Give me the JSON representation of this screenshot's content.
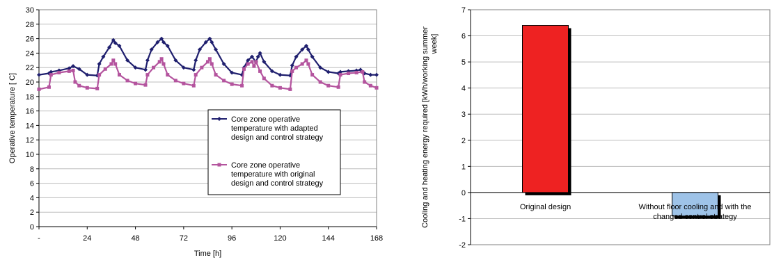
{
  "chart_data": [
    {
      "type": "line",
      "title": "",
      "xlabel": "Time [h]",
      "ylabel": "Operative temperature [ C]",
      "xlim": [
        0,
        168
      ],
      "ylim": [
        0,
        30
      ],
      "x_ticks": [
        0,
        24,
        48,
        72,
        96,
        120,
        144,
        168
      ],
      "x_tick_labels": [
        "-",
        "24",
        "48",
        "72",
        "96",
        "120",
        "144",
        "168"
      ],
      "y_ticks": [
        0,
        2,
        4,
        6,
        8,
        10,
        12,
        14,
        16,
        18,
        20,
        22,
        24,
        26,
        28,
        30
      ],
      "y_tick_labels": [
        "0",
        "2",
        "4",
        "6",
        "8",
        "10",
        "12",
        "14",
        "16",
        "18",
        "20",
        "22",
        "24",
        "26",
        "28",
        "30"
      ],
      "grid": "horizontal",
      "legend_position": "center-right",
      "series": [
        {
          "name": "Core zone operative temperature with adapted design and control strategy",
          "color": "#1f1f6e",
          "marker": "diamond",
          "x": [
            0,
            5,
            6,
            10,
            15,
            17,
            20,
            24,
            29,
            30,
            32,
            35,
            37,
            38,
            40,
            44,
            48,
            53,
            54,
            56,
            59,
            61,
            62,
            64,
            68,
            72,
            77,
            78,
            80,
            83,
            85,
            86,
            88,
            92,
            96,
            101,
            102,
            104,
            106,
            108,
            109,
            110,
            112,
            116,
            120,
            125,
            126,
            128,
            131,
            133,
            134,
            136,
            140,
            144,
            149,
            150,
            154,
            158,
            160,
            162,
            165,
            168
          ],
          "y": [
            21.0,
            21.2,
            21.4,
            21.6,
            21.9,
            22.2,
            21.8,
            21.0,
            20.9,
            22.5,
            23.5,
            24.8,
            25.8,
            25.4,
            25.0,
            23.0,
            22.0,
            21.7,
            23.0,
            24.5,
            25.5,
            26.0,
            25.5,
            25.0,
            23.0,
            22.0,
            21.7,
            23.0,
            24.5,
            25.5,
            26.0,
            25.5,
            24.5,
            22.5,
            21.3,
            21.0,
            22.0,
            23.0,
            23.5,
            22.8,
            23.5,
            24.0,
            22.8,
            21.5,
            21.0,
            20.9,
            22.3,
            23.5,
            24.5,
            25.0,
            24.5,
            23.5,
            22.0,
            21.4,
            21.2,
            21.4,
            21.5,
            21.6,
            21.7,
            21.2,
            21.0,
            21.0
          ]
        },
        {
          "name": "Core zone operative temperature with original design and control strategy",
          "color": "#b4549e",
          "marker": "square",
          "x": [
            0,
            5,
            6,
            10,
            15,
            17,
            18,
            20,
            24,
            29,
            30,
            33,
            36,
            37,
            38,
            40,
            44,
            48,
            53,
            54,
            57,
            60,
            61,
            62,
            64,
            68,
            72,
            77,
            78,
            81,
            84,
            85,
            86,
            88,
            92,
            96,
            101,
            102,
            104,
            106,
            107,
            108,
            110,
            112,
            116,
            120,
            125,
            126,
            128,
            131,
            133,
            134,
            136,
            140,
            144,
            149,
            150,
            154,
            158,
            161,
            162,
            165,
            168
          ],
          "y": [
            19.0,
            19.3,
            21.0,
            21.3,
            21.5,
            21.6,
            20.0,
            19.5,
            19.2,
            19.1,
            21.0,
            21.8,
            22.5,
            23.0,
            22.5,
            21.0,
            20.2,
            19.8,
            19.6,
            21.0,
            22.0,
            22.8,
            23.2,
            22.5,
            21.0,
            20.2,
            19.8,
            19.5,
            21.0,
            22.0,
            22.8,
            23.2,
            22.5,
            21.0,
            20.2,
            19.7,
            19.5,
            21.8,
            22.5,
            22.8,
            22.2,
            22.8,
            21.5,
            20.5,
            19.5,
            19.2,
            19.0,
            21.5,
            22.0,
            22.5,
            23.0,
            22.5,
            21.0,
            20.0,
            19.5,
            19.3,
            21.0,
            21.2,
            21.3,
            21.4,
            20.0,
            19.5,
            19.2
          ]
        }
      ]
    },
    {
      "type": "bar",
      "title": "",
      "xlabel": "",
      "ylabel": "Cooling and heating energy required [kWh/working summer week]",
      "ylim": [
        -2,
        7
      ],
      "y_ticks": [
        -2,
        -1,
        0,
        1,
        2,
        3,
        4,
        5,
        6,
        7
      ],
      "y_tick_labels": [
        "-2",
        "-1",
        "0",
        "1",
        "2",
        "3",
        "4",
        "5",
        "6",
        "7"
      ],
      "grid": "horizontal",
      "categories": [
        "Original design",
        "Without floor cooling and with the changed control strategy"
      ],
      "values": [
        6.4,
        -0.9
      ],
      "colors": [
        "#ee2222",
        "#9ec3e8"
      ]
    }
  ]
}
